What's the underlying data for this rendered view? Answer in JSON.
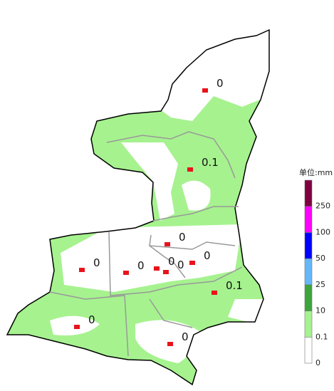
{
  "map": {
    "stations": [
      {
        "value": 0
      },
      {
        "value": 0.1
      },
      {
        "value": 0
      },
      {
        "value": 0
      },
      {
        "value": 0
      },
      {
        "value": 0
      },
      {
        "value": 0
      },
      {
        "value": 0
      },
      {
        "value": 0.1
      },
      {
        "value": 0
      },
      {
        "value": 0
      }
    ],
    "legend": {
      "title": "单位:mm",
      "levels": [
        0,
        0.1,
        10,
        25,
        50,
        100,
        250
      ],
      "colors": [
        "#ffffff",
        "#a6f28f",
        "#3ca53c",
        "#63b8f9",
        "#0000fe",
        "#fe00fe",
        "#7f003f"
      ]
    }
  }
}
